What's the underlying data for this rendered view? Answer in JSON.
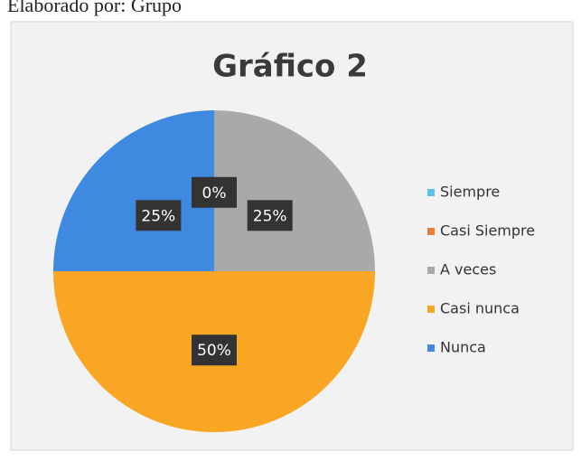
{
  "caption": "Elaborado por: Grupo",
  "chart_data": {
    "type": "pie",
    "title": "Gráfico 2",
    "categories": [
      "Siempre",
      "Casi Siempre",
      "A veces",
      "Casi nunca",
      "Nunca"
    ],
    "values": [
      0,
      0,
      25,
      50,
      25
    ],
    "value_labels": [
      "0%",
      null,
      "25%",
      "50%",
      "25%"
    ],
    "colors": [
      "#5bc3ea",
      "#ee7d3a",
      "#a9a9a9",
      "#f8a623",
      "#3f8ae0"
    ],
    "legend": "right"
  }
}
